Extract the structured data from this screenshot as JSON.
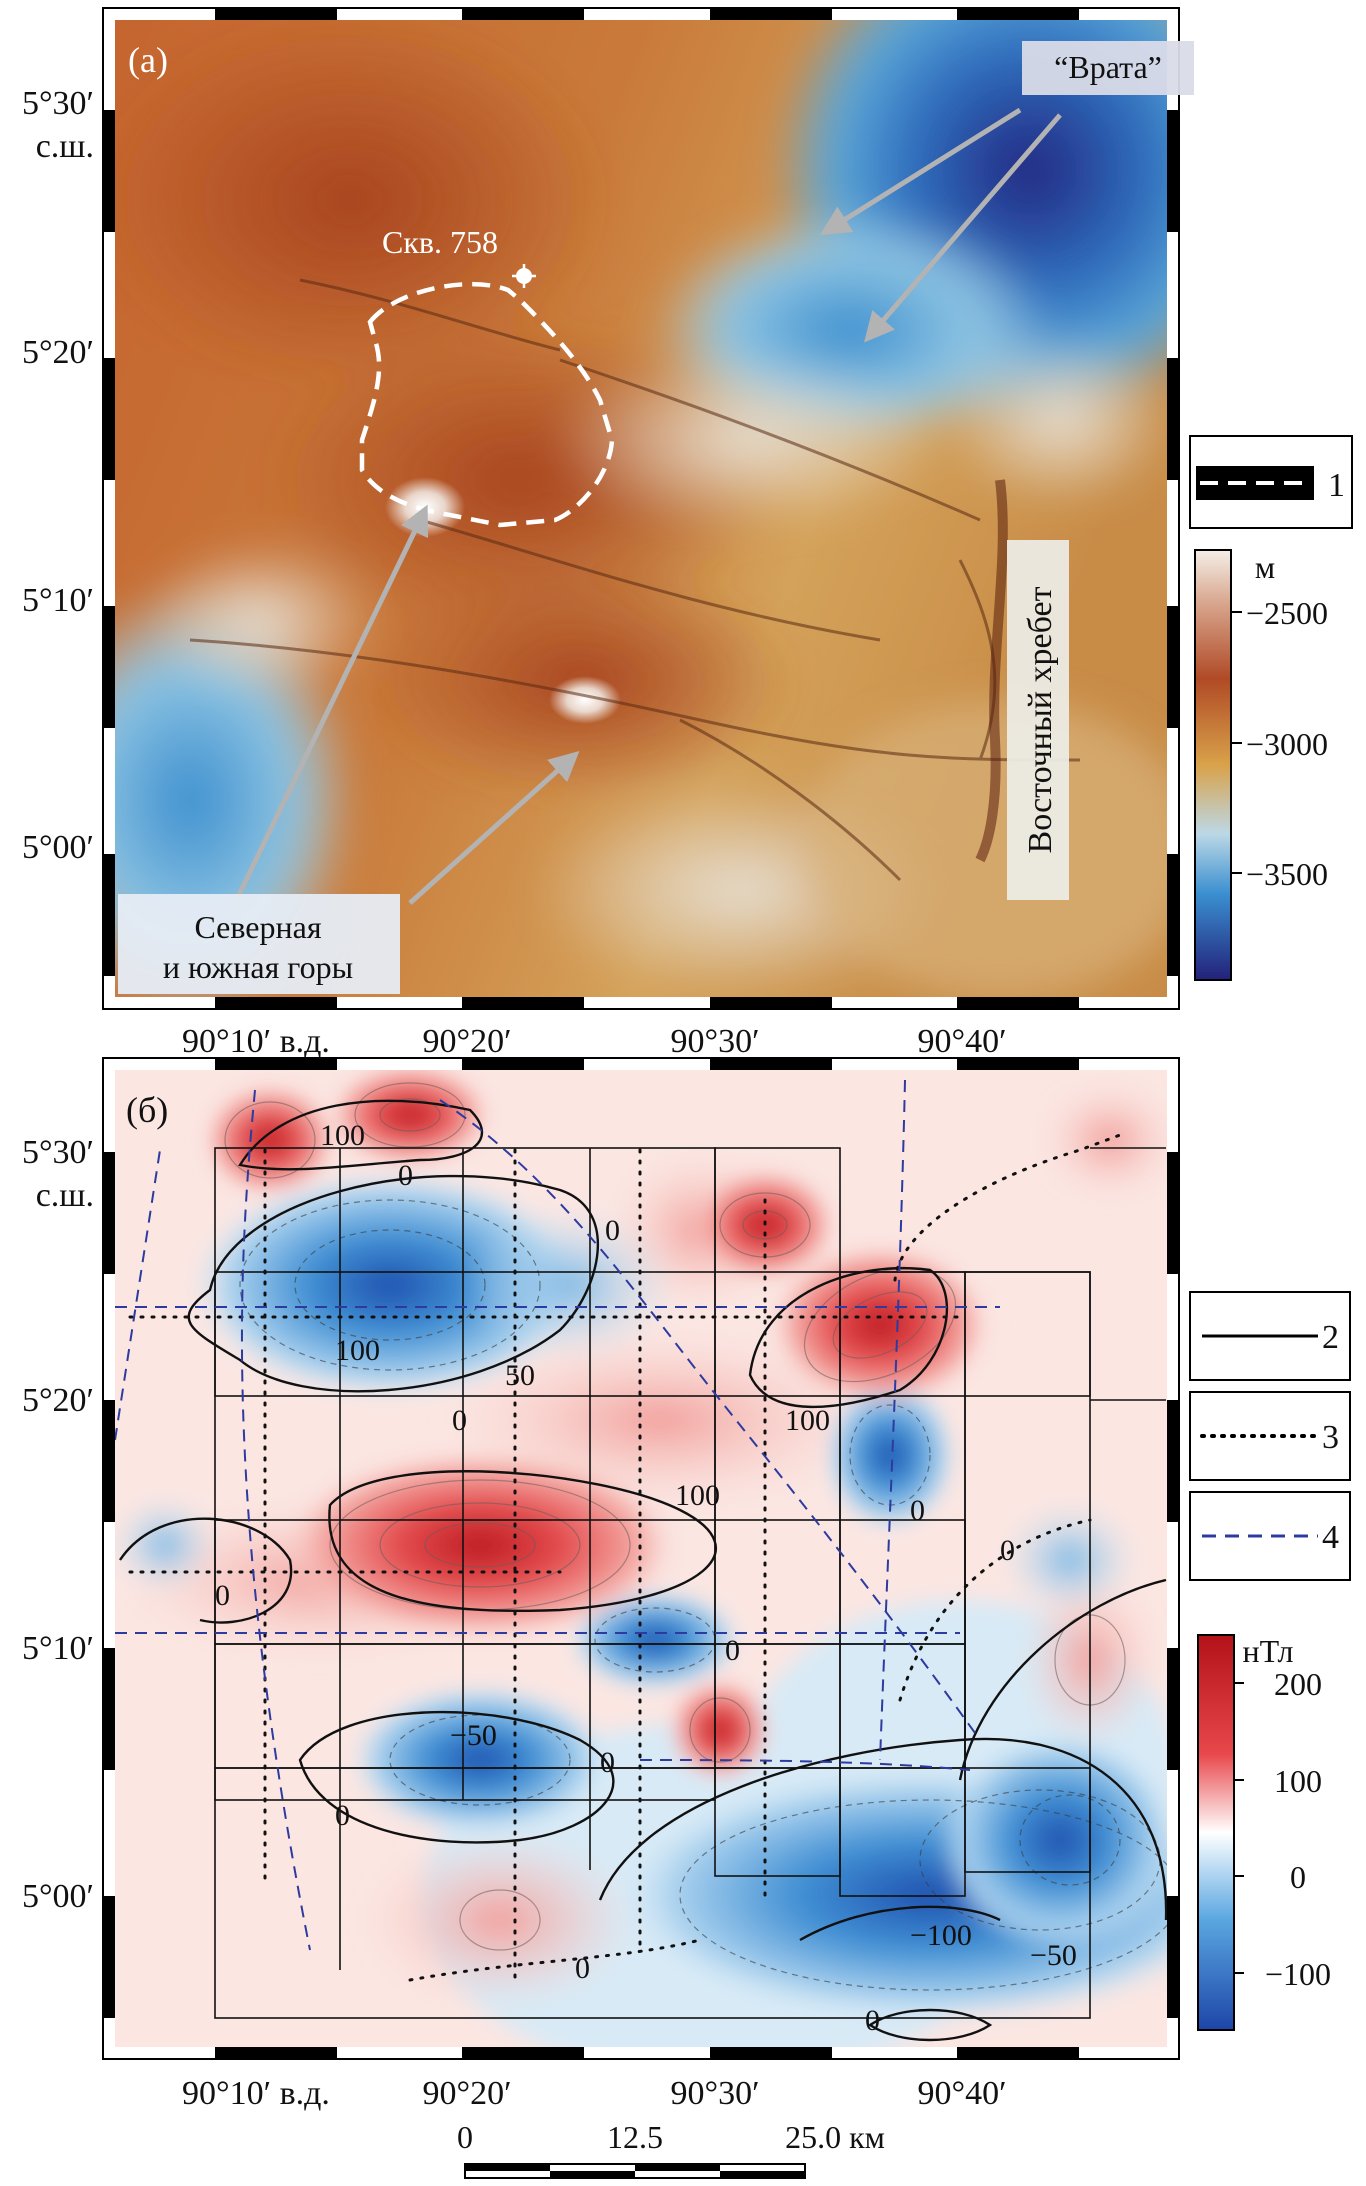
{
  "panel_a": {
    "label": "(а)",
    "lat_labels": [
      "5°30′",
      "с.ш.",
      "5°20′",
      "5°10′",
      "5°00′"
    ],
    "lon_labels": [
      "90°10′ в.д.",
      "90°20′",
      "90°30′",
      "90°40′"
    ],
    "annotations": {
      "gates": "“Врата”",
      "well": "Скв. 758",
      "mountains_line1": "Северная",
      "mountains_line2": "и южная горы",
      "ridge": "Восточный хребет"
    },
    "legend_item_1": "1",
    "colorbar": {
      "unit": "м",
      "ticks": [
        "−2500",
        "−3000",
        "−3500"
      ],
      "colors": [
        "#f4efe8",
        "#b04a26",
        "#d9a24a",
        "#bcd8e6",
        "#3a8fd0",
        "#23217a"
      ]
    }
  },
  "panel_b": {
    "label": "(б)",
    "lat_labels": [
      "5°30′",
      "с.ш.",
      "5°20′",
      "5°10′",
      "5°00′"
    ],
    "lon_labels": [
      "90°10′ в.д.",
      "90°20′",
      "90°30′",
      "90°40′"
    ],
    "contour_labels": [
      "100",
      "0",
      "100",
      "50",
      "0",
      "100",
      "100",
      "0",
      "0",
      "0",
      "0",
      "0",
      "−50",
      "0",
      "0",
      "−100",
      "−50",
      "0",
      "0"
    ],
    "legend": [
      "2",
      "3",
      "4"
    ],
    "colorbar": {
      "unit": "нТл",
      "ticks": [
        "200",
        "100",
        "0",
        "−100"
      ],
      "colors": [
        "#b31218",
        "#e8474b",
        "#ffffff",
        "#5aa7e0",
        "#1d45a8"
      ]
    }
  },
  "scale_bar": {
    "labels": [
      "0",
      "12.5",
      "25.0 км"
    ]
  }
}
